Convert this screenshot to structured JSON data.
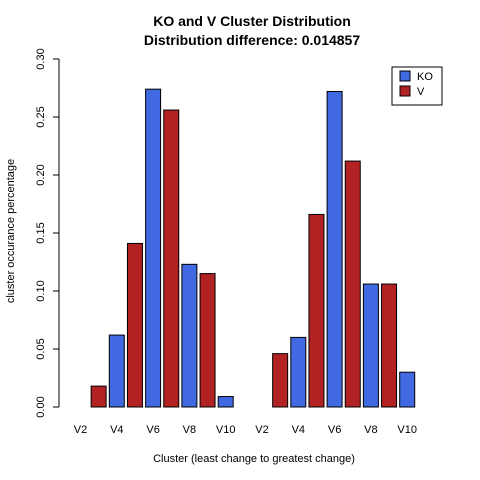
{
  "chart_data": {
    "type": "bar",
    "title": "KO and V Cluster Distribution",
    "subtitle": "Distribution difference: 0.014857",
    "xlabel": "Cluster (least change to greatest change)",
    "ylabel": "cluster occurance percentage",
    "ylim": [
      0,
      0.3
    ],
    "yticks": [
      "0.00",
      "0.05",
      "0.10",
      "0.15",
      "0.20",
      "0.25",
      "0.30"
    ],
    "categories": [
      "V2",
      "V3",
      "V4",
      "V5",
      "V6",
      "V7",
      "V8",
      "V9",
      "V10",
      "V11",
      "V2",
      "V3",
      "V4",
      "V5",
      "V6",
      "V7",
      "V8",
      "V9",
      "V10",
      "V11"
    ],
    "tick_labels": [
      "V2",
      "",
      "V4",
      "",
      "V6",
      "",
      "V8",
      "",
      "V10",
      "",
      "V2",
      "",
      "V4",
      "",
      "V6",
      "",
      "V8",
      "",
      "V10",
      ""
    ],
    "values": [
      0.0,
      0.018,
      0.062,
      0.141,
      0.274,
      0.256,
      0.123,
      0.115,
      0.009,
      0.0,
      0.0,
      0.046,
      0.06,
      0.166,
      0.272,
      0.212,
      0.106,
      0.106,
      0.03,
      0.0
    ],
    "bar_colors": [
      "#4169E1",
      "#B22222",
      "#4169E1",
      "#B22222",
      "#4169E1",
      "#B22222",
      "#4169E1",
      "#B22222",
      "#4169E1",
      "#B22222",
      "#4169E1",
      "#B22222",
      "#4169E1",
      "#B22222",
      "#4169E1",
      "#B22222",
      "#4169E1",
      "#B22222",
      "#4169E1",
      "#B22222"
    ],
    "legend": [
      {
        "name": "KO",
        "color": "#4169E1"
      },
      {
        "name": "V",
        "color": "#B22222"
      }
    ],
    "legend_position": "top-right",
    "grid": false
  }
}
